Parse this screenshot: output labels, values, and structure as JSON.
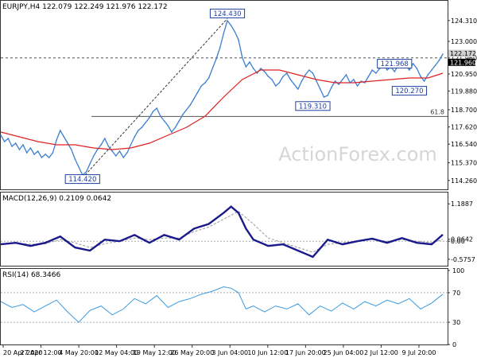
{
  "colors": {
    "background": "#ffffff",
    "price_line": "#3a7fd1",
    "moving_average": "#e02020",
    "macd_line": "#1a1a8c",
    "signal_line": "#9a9a9a",
    "rsi_line": "#3a9ae0",
    "grid": "#b4b4b4",
    "label_box": "#1f3fa0",
    "watermark": "#d6d6d6"
  },
  "watermark": "ActionForex.com",
  "chart_data": [
    {
      "id": "price",
      "type": "line",
      "header": "EURJPY,H4  122.079 122.249 121.976 122.172",
      "ylim": [
        113.7,
        124.9
      ],
      "yticks": [
        "124.310",
        "123.000",
        "121.960",
        "120.950",
        "119.880",
        "118.700",
        "117.620",
        "116.540",
        "115.370",
        "114.260"
      ],
      "current_price_labels": [
        "122.172",
        "121.960"
      ],
      "horizontal_levels": [
        {
          "value": 121.96,
          "style": "dashed"
        },
        {
          "value": 118.28,
          "style": "solid",
          "label": "61.8"
        }
      ],
      "annotations": [
        {
          "label": "124.430",
          "x": 61,
          "y": 124.43
        },
        {
          "label": "121.968",
          "x": 106,
          "y": 121.97
        },
        {
          "label": "120.270",
          "x": 110,
          "y": 120.27
        },
        {
          "label": "119.310",
          "x": 84,
          "y": 119.31
        },
        {
          "label": "114.420",
          "x": 22,
          "y": 114.42
        }
      ],
      "trendline": {
        "from": {
          "x": 22,
          "y": 114.42
        },
        "to": {
          "x": 61,
          "y": 124.43
        }
      },
      "series": [
        {
          "id": "close",
          "x": [
            0,
            1,
            2,
            3,
            4,
            5,
            6,
            7,
            8,
            9,
            10,
            11,
            12,
            13,
            14,
            15,
            16,
            17,
            18,
            19,
            20,
            21,
            22,
            23,
            24,
            25,
            26,
            27,
            28,
            29,
            30,
            31,
            32,
            33,
            34,
            35,
            36,
            37,
            38,
            39,
            40,
            41,
            42,
            43,
            44,
            45,
            46,
            47,
            48,
            49,
            50,
            51,
            52,
            53,
            54,
            55,
            56,
            57,
            58,
            59,
            60,
            61,
            62,
            63,
            64,
            65,
            66,
            67,
            68,
            69,
            70,
            71,
            72,
            73,
            74,
            75,
            76,
            77,
            78,
            79,
            80,
            81,
            82,
            83,
            84,
            85,
            86,
            87,
            88,
            89,
            90,
            91,
            92,
            93,
            94,
            95,
            96,
            97,
            98,
            99,
            100,
            101,
            102,
            103,
            104,
            105,
            106,
            107,
            108,
            109,
            110,
            111,
            112,
            113,
            114,
            115,
            116,
            117,
            118,
            119
          ],
          "y": [
            117.1,
            116.7,
            116.9,
            116.4,
            116.6,
            116.2,
            116.5,
            116.0,
            116.3,
            115.9,
            116.1,
            115.7,
            115.9,
            115.7,
            116.0,
            116.8,
            117.4,
            117.0,
            116.6,
            116.2,
            115.6,
            115.1,
            114.6,
            114.8,
            115.3,
            115.8,
            116.2,
            116.5,
            116.9,
            116.4,
            116.1,
            115.8,
            116.1,
            115.7,
            116.0,
            116.5,
            117.0,
            117.4,
            117.6,
            117.9,
            118.2,
            118.6,
            118.8,
            118.3,
            118.0,
            117.7,
            117.3,
            117.6,
            118.0,
            118.4,
            118.7,
            119.0,
            119.4,
            119.8,
            120.2,
            120.4,
            120.7,
            121.3,
            121.9,
            122.6,
            123.5,
            124.3,
            124.0,
            123.6,
            123.1,
            122.0,
            121.4,
            121.7,
            121.3,
            121.0,
            121.3,
            121.1,
            120.8,
            120.6,
            120.2,
            120.4,
            120.8,
            121.0,
            120.6,
            120.3,
            120.0,
            120.5,
            120.9,
            121.2,
            121.0,
            120.5,
            120.0,
            119.5,
            119.6,
            120.1,
            120.5,
            120.3,
            120.6,
            120.9,
            120.4,
            120.6,
            120.2,
            120.5,
            120.4,
            120.8,
            121.2,
            121.0,
            121.3,
            121.6,
            121.2,
            121.4,
            121.1,
            121.5,
            121.7,
            121.5,
            121.2,
            121.6,
            121.3,
            120.8,
            120.5,
            120.9,
            121.2,
            121.5,
            121.8,
            122.2
          ]
        },
        {
          "id": "moving-average",
          "x": [
            0,
            5,
            10,
            15,
            20,
            25,
            30,
            35,
            40,
            45,
            50,
            55,
            60,
            65,
            70,
            75,
            80,
            85,
            90,
            95,
            100,
            105,
            110,
            115,
            119
          ],
          "y": [
            117.3,
            117.0,
            116.7,
            116.5,
            116.5,
            116.3,
            116.2,
            116.3,
            116.6,
            117.1,
            117.6,
            118.3,
            119.5,
            120.6,
            121.2,
            121.2,
            120.9,
            120.6,
            120.4,
            120.4,
            120.5,
            120.6,
            120.7,
            120.7,
            121.0
          ]
        }
      ]
    },
    {
      "id": "macd",
      "type": "line",
      "header": "MACD(12,26,9)  0.2109  0.0642",
      "ylim": [
        -0.78,
        1.22
      ],
      "yticks": [
        "1.1887",
        "0.0642",
        "0.00",
        "-0.5757"
      ],
      "series": [
        {
          "id": "macd-line",
          "x": [
            0,
            4,
            8,
            12,
            16,
            20,
            24,
            28,
            32,
            36,
            40,
            44,
            48,
            52,
            56,
            60,
            62,
            64,
            66,
            68,
            72,
            76,
            80,
            84,
            88,
            92,
            96,
            100,
            104,
            108,
            112,
            116,
            119
          ],
          "y": [
            -0.1,
            -0.05,
            -0.15,
            -0.05,
            0.15,
            -0.2,
            -0.3,
            0.05,
            0.0,
            0.2,
            -0.05,
            0.2,
            0.05,
            0.4,
            0.55,
            0.9,
            1.1,
            0.9,
            0.4,
            0.05,
            -0.15,
            -0.1,
            -0.3,
            -0.5,
            0.05,
            -0.1,
            0.0,
            0.08,
            -0.05,
            0.1,
            -0.05,
            -0.1,
            0.21
          ]
        },
        {
          "id": "signal-line",
          "x": [
            0,
            4,
            8,
            12,
            16,
            20,
            24,
            28,
            32,
            36,
            40,
            44,
            48,
            52,
            56,
            60,
            64,
            68,
            72,
            76,
            80,
            84,
            88,
            92,
            96,
            100,
            104,
            108,
            112,
            116,
            119
          ],
          "y": [
            -0.08,
            -0.06,
            -0.1,
            -0.08,
            0.05,
            -0.05,
            -0.2,
            -0.08,
            0.0,
            0.1,
            0.05,
            0.1,
            0.1,
            0.3,
            0.45,
            0.7,
            0.95,
            0.55,
            0.1,
            -0.05,
            -0.2,
            -0.35,
            -0.1,
            -0.05,
            0.0,
            0.05,
            0.0,
            0.05,
            0.0,
            -0.05,
            0.06
          ]
        }
      ]
    },
    {
      "id": "rsi",
      "type": "line",
      "header": "RSI(14) 68.3466",
      "ylim": [
        0,
        100
      ],
      "yticks": [
        "100",
        "70",
        "30",
        "0"
      ],
      "levels": [
        70,
        30
      ],
      "series": [
        {
          "id": "rsi-line",
          "x": [
            0,
            3,
            6,
            9,
            12,
            15,
            18,
            21,
            24,
            27,
            30,
            33,
            36,
            39,
            42,
            45,
            48,
            51,
            54,
            57,
            60,
            62,
            64,
            66,
            68,
            71,
            74,
            77,
            80,
            83,
            86,
            89,
            92,
            95,
            98,
            101,
            104,
            107,
            110,
            113,
            116,
            119
          ],
          "y": [
            58,
            50,
            54,
            44,
            52,
            60,
            44,
            30,
            46,
            52,
            40,
            48,
            62,
            55,
            66,
            50,
            58,
            62,
            68,
            72,
            78,
            76,
            70,
            48,
            52,
            44,
            52,
            48,
            55,
            40,
            52,
            45,
            56,
            48,
            58,
            52,
            60,
            55,
            62,
            48,
            56,
            68
          ]
        }
      ]
    }
  ],
  "xaxis": {
    "labels": [
      "20 Apr 2020",
      "27 Apr 12:00",
      "4 May 20:00",
      "12 May 04:00",
      "19 May 12:00",
      "26 May 20:00",
      "3 Jun 04:00",
      "10 Jun 12:00",
      "17 Jun 20:00",
      "25 Jun 04:00",
      "2 Jul 12:00",
      "9 Jul 20:00"
    ]
  }
}
